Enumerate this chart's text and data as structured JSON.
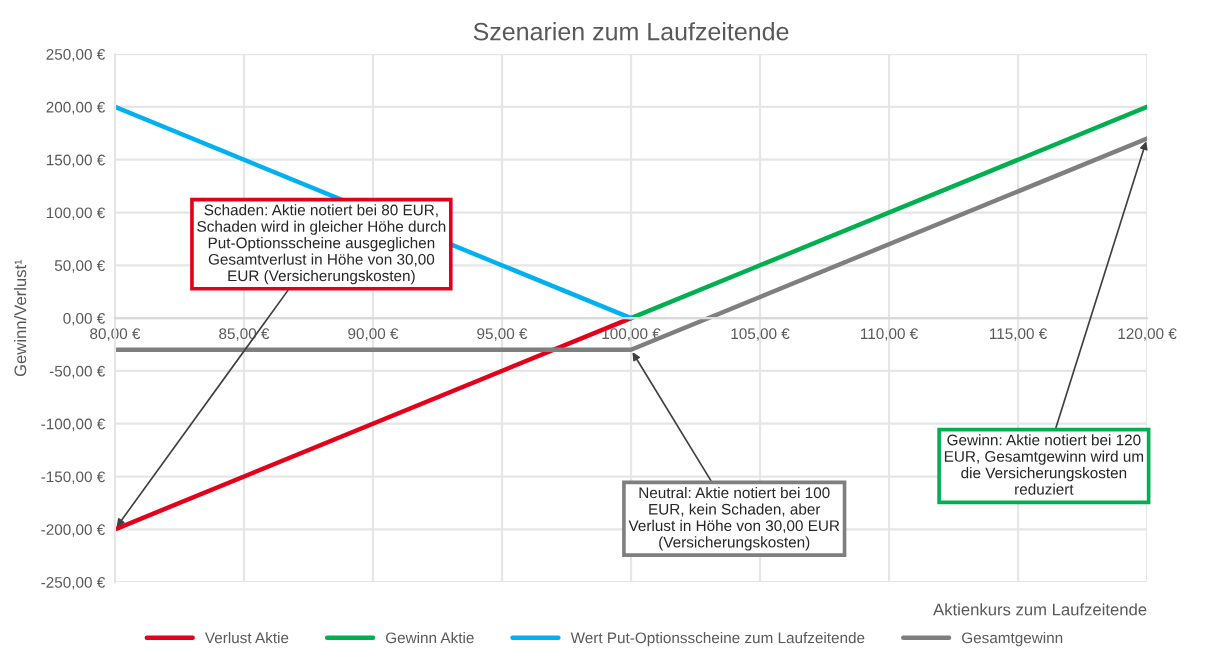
{
  "chart_data": {
    "type": "line",
    "title": "Szenarien zum Laufzeitende",
    "xlabel": "Aktienkurs zum Laufzeitende",
    "ylabel": "Gewinn/Verlust¹",
    "series": [
      {
        "name": "Verlust Aktie",
        "color": "#e3001b",
        "x": [
          80,
          100
        ],
        "values": [
          -200,
          0
        ]
      },
      {
        "name": "Gewinn Aktie",
        "color": "#00b050",
        "x": [
          100,
          120
        ],
        "values": [
          0,
          200
        ]
      },
      {
        "name": "Wert Put-Optionsscheine zum Laufzeitende",
        "color": "#00b0f0",
        "x": [
          80,
          100
        ],
        "values": [
          200,
          0
        ]
      },
      {
        "name": "Gesamtgewinn",
        "color": "#7f7f7f",
        "x": [
          80,
          100,
          120
        ],
        "values": [
          -30,
          -30,
          170
        ]
      }
    ],
    "xlim": [
      80,
      120
    ],
    "ylim": [
      -250,
      250
    ],
    "xticks": [
      {
        "value": 80,
        "label": "80,00 €"
      },
      {
        "value": 85,
        "label": "85,00 €"
      },
      {
        "value": 90,
        "label": "90,00 €"
      },
      {
        "value": 95,
        "label": "95,00 €"
      },
      {
        "value": 100,
        "label": "100,00 €"
      },
      {
        "value": 105,
        "label": "105,00 €"
      },
      {
        "value": 110,
        "label": "110,00 €"
      },
      {
        "value": 115,
        "label": "115,00 €"
      },
      {
        "value": 120,
        "label": "120,00 €"
      }
    ],
    "yticks": [
      {
        "value": -250,
        "label": "-250,00 €"
      },
      {
        "value": -200,
        "label": "-200,00 €"
      },
      {
        "value": -150,
        "label": "-150,00 €"
      },
      {
        "value": -100,
        "label": "-100,00 €"
      },
      {
        "value": -50,
        "label": "-50,00 €"
      },
      {
        "value": 0,
        "label": "0,00 €"
      },
      {
        "value": 50,
        "label": "50,00 €"
      },
      {
        "value": 100,
        "label": "100,00 €"
      },
      {
        "value": 150,
        "label": "150,00 €"
      },
      {
        "value": 200,
        "label": "200,00 €"
      },
      {
        "value": 250,
        "label": "250,00 €"
      }
    ],
    "annotations": [
      {
        "text": "Schaden: Aktie notiert bei 80 EUR,\nSchaden wird in gleicher Höhe durch\nPut-Optionsscheine ausgeglichen\nGesamtverlust in Höhe von 30,00\nEUR (Versicherungskosten)",
        "x": 80,
        "y": -200
      },
      {
        "text": "Neutral: Aktie notiert bei 100\nEUR, kein Schaden, aber\nVerlust in Höhe von 30,00 EUR\n(Versicherungskosten)",
        "x": 100,
        "y": -30
      },
      {
        "text": "Gewinn: Aktie notiert bei 120\nEUR, Gesamtgewinn wird um\ndie Versicherungskosten\nreduziert",
        "x": 120,
        "y": 170
      }
    ],
    "grid": true,
    "legend": "bottom",
    "marker": "none",
    "line_style": "solid"
  }
}
